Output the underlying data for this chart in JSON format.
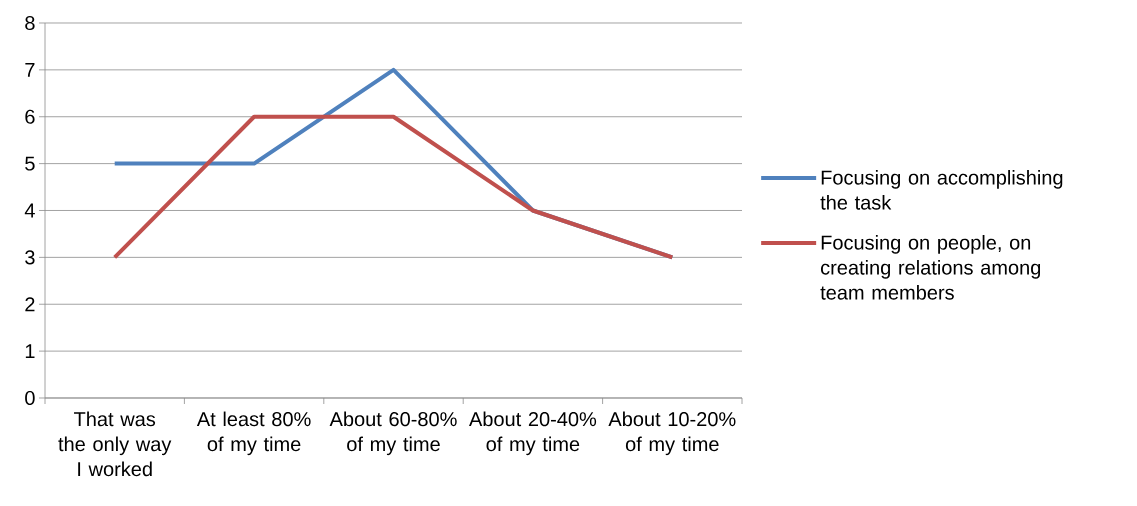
{
  "chart_data": {
    "type": "line",
    "categories": [
      "That was the only way I worked",
      "At least 80% of my time",
      "About 60-80% of my time",
      "About 20-40% of my time",
      "About 10-20% of my time"
    ],
    "series": [
      {
        "name": "Focusing on accomplishing the task",
        "color": "#4f81bd",
        "values": [
          5,
          5,
          7,
          4,
          3
        ]
      },
      {
        "name": "Focusing on people, on creating relations among team members",
        "color": "#c0504d",
        "values": [
          3,
          6,
          6,
          4,
          3
        ]
      }
    ],
    "ylim": [
      0,
      8
    ],
    "yticks": [
      0,
      1,
      2,
      3,
      4,
      5,
      6,
      7,
      8
    ],
    "grid": "y",
    "legend": "right",
    "marker": "none",
    "line_style": "solid"
  }
}
